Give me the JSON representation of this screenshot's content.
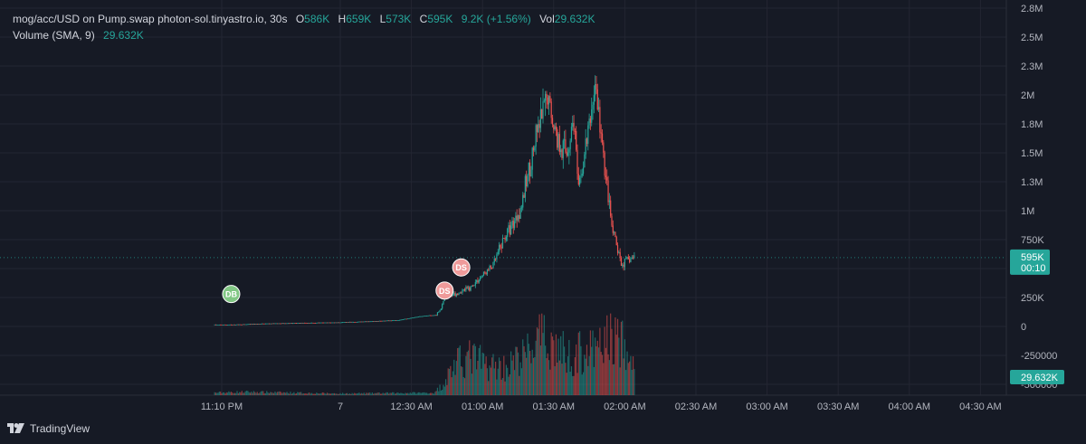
{
  "header": {
    "symbol": "mog/acc/USD on Pump.swap photon-sol.tinyastro.io, 30s",
    "open_label": "O",
    "open": "586K",
    "high_label": "H",
    "high": "659K",
    "low_label": "L",
    "low": "573K",
    "close_label": "C",
    "close": "595K",
    "change": "9.2K (+1.56%)",
    "vol_label": "Vol",
    "vol": "29.632K"
  },
  "volume_indicator": {
    "label": "Volume (SMA, 9)",
    "value": "29.632K"
  },
  "price_badge": {
    "price": "595K",
    "countdown": "00:10"
  },
  "volume_badge": "29.632K",
  "footer": {
    "brand": "TradingView"
  },
  "colors": {
    "background": "#161a25",
    "up": "#26a69a",
    "down": "#ef5350",
    "grid": "#232632",
    "text": "#b2b5be",
    "buy_marker": "#81c784",
    "sell_marker": "#ef9a9a"
  },
  "icons": [
    "tradingview-logo-icon"
  ],
  "chart_data": {
    "type": "candlestick",
    "y_axis_ticks": [
      "2.8M",
      "2.5M",
      "2.3M",
      "2M",
      "1.8M",
      "1.5M",
      "1.3M",
      "1M",
      "750K",
      "500K",
      "250K",
      "0",
      "-250000",
      "-500000"
    ],
    "y_axis_tick_values": [
      2750000,
      2500000,
      2250000,
      2000000,
      1750000,
      1500000,
      1250000,
      1000000,
      750000,
      500000,
      250000,
      0,
      -250000,
      -500000
    ],
    "x_axis_ticks": [
      "11:10 PM",
      "7",
      "12:30 AM",
      "01:00 AM",
      "01:30 AM",
      "02:00 AM",
      "02:30 AM",
      "03:00 AM",
      "03:30 AM",
      "04:00 AM",
      "04:30 AM"
    ],
    "x_axis_tick_minutes": [
      -50,
      0,
      30,
      60,
      90,
      120,
      150,
      180,
      210,
      240,
      270
    ],
    "ylim": [
      -500000,
      2750000
    ],
    "last_price": 595000,
    "price_path": {
      "t_minutes": [
        -53,
        -45,
        -30,
        -15,
        0,
        15,
        25,
        35,
        41,
        43,
        45,
        50,
        55,
        60,
        65,
        70,
        74,
        77,
        80,
        84,
        88,
        92,
        96,
        99,
        101,
        104,
        106,
        108,
        111,
        113,
        115,
        117,
        119,
        121,
        124
      ],
      "price": [
        15000,
        15000,
        25000,
        30000,
        35000,
        45000,
        55000,
        90000,
        100000,
        160000,
        260000,
        290000,
        330000,
        430000,
        530000,
        780000,
        920000,
        1050000,
        1350000,
        1700000,
        1980000,
        1620000,
        1500000,
        1800000,
        1150000,
        1550000,
        1800000,
        2100000,
        1550000,
        1200000,
        850000,
        700000,
        530000,
        560000,
        595000
      ]
    },
    "volume_profile": {
      "t_minutes": [
        -53,
        -40,
        0,
        40,
        43,
        48,
        55,
        62,
        70,
        78,
        84,
        90,
        97,
        103,
        108,
        113,
        118,
        122,
        124
      ],
      "volume": [
        3,
        4,
        2,
        3,
        10,
        30,
        38,
        30,
        28,
        40,
        55,
        50,
        38,
        45,
        42,
        58,
        55,
        32,
        30
      ]
    },
    "markers": [
      {
        "label": "DB",
        "t_minutes": -46,
        "price": 280000,
        "kind": "buy"
      },
      {
        "label": "DS",
        "t_minutes": 44,
        "price": 310000,
        "kind": "sell"
      },
      {
        "label": "DS",
        "t_minutes": 51,
        "price": 510000,
        "kind": "sell"
      }
    ]
  }
}
